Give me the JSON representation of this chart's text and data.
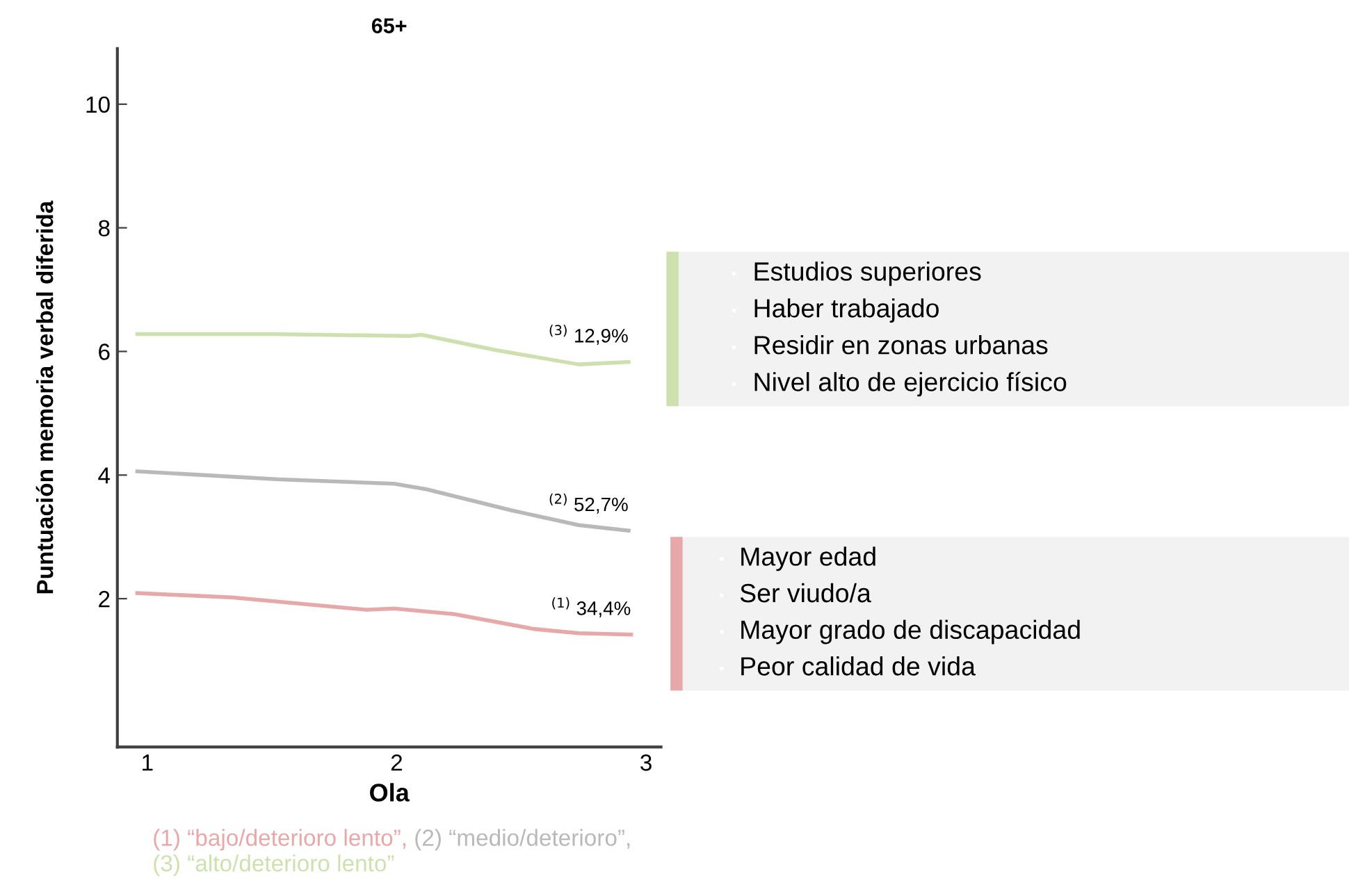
{
  "chart_data": {
    "type": "line",
    "title": "65+",
    "xlabel": "Ola",
    "ylabel": "Puntuación memoria verbal diferida",
    "xlim": [
      0.88,
      3.06
    ],
    "ylim": [
      -0.4,
      10.9
    ],
    "xticks": [
      1,
      2,
      3
    ],
    "yticks": [
      2,
      4,
      6,
      8,
      10
    ],
    "grid": false,
    "legend": false,
    "marker": "none",
    "line_style": "solid",
    "series": [
      {
        "color": "#e6a8a8",
        "x": [
          0.96,
          1.34,
          1.88,
          1.99,
          2.23,
          2.55,
          2.73,
          2.94
        ],
        "values": [
          2.09,
          2.02,
          1.82,
          1.84,
          1.75,
          1.51,
          1.44,
          1.42
        ]
      },
      {
        "color": "#b9b9b9",
        "x": [
          0.96,
          1.53,
          1.99,
          2.12,
          2.46,
          2.73,
          2.93
        ],
        "values": [
          4.06,
          3.93,
          3.86,
          3.77,
          3.43,
          3.19,
          3.1
        ]
      },
      {
        "color": "#cfe0b0",
        "x": [
          0.96,
          1.5,
          2.05,
          2.1,
          2.4,
          2.73,
          2.93
        ],
        "values": [
          6.28,
          6.28,
          6.25,
          6.27,
          6.02,
          5.79,
          5.83
        ]
      }
    ],
    "annotations": [
      "$^{(1)}$ 34,4%",
      "$^{(2)}$ 52,7%",
      "$^{(3)}$ 12,9%",
      "(1) “bajo/deterioro lento”,",
      "(2) “medio/deterioro”,",
      "(3) “alto/deterioro lento”",
      "Estudios superiores\nHaber trabajado\nResidir en zonas urbanas\nNivel alto de ejercicio físico",
      "Mayor edad\nSer viudo/a\nMayor grado de discapacidad\nPeor calidad de vida"
    ]
  }
}
